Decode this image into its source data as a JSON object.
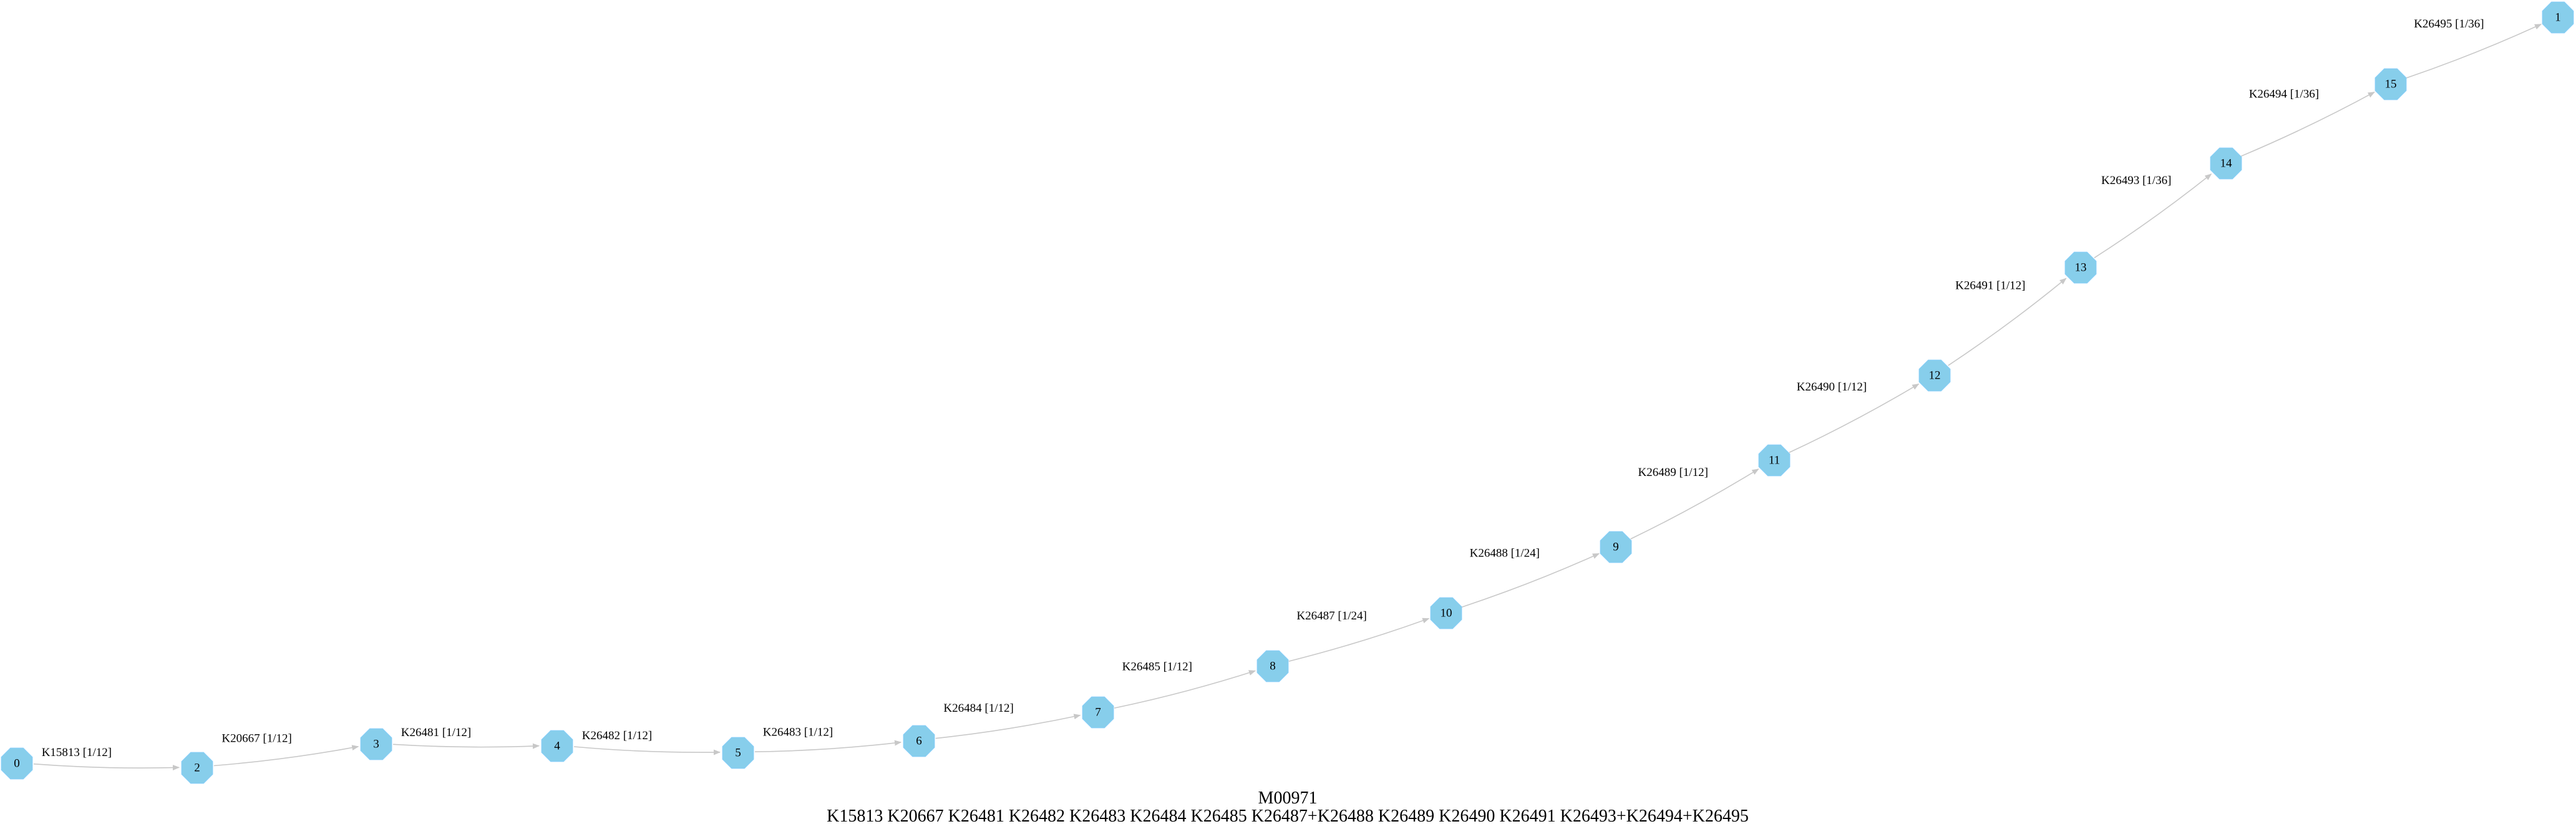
{
  "colors": {
    "node_fill": "#87ceeb",
    "edge": "#c8c8c8",
    "text": "#000000",
    "background": "#ffffff"
  },
  "caption": {
    "module_id": "M00971",
    "definition": "K15813 K20667 K26481 K26482 K26483 K26484 K26485 K26487+K26488 K26489 K26490 K26491 K26493+K26494+K26495"
  },
  "nodes": [
    "0",
    "2",
    "3",
    "4",
    "5",
    "6",
    "7",
    "8",
    "10",
    "9",
    "11",
    "12",
    "13",
    "14",
    "15",
    "1"
  ],
  "edges": [
    {
      "from": "0",
      "to": "2",
      "label": "K15813 [1/12]"
    },
    {
      "from": "2",
      "to": "3",
      "label": "K20667 [1/12]"
    },
    {
      "from": "3",
      "to": "4",
      "label": "K26481 [1/12]"
    },
    {
      "from": "4",
      "to": "5",
      "label": "K26482 [1/12]"
    },
    {
      "from": "5",
      "to": "6",
      "label": "K26483 [1/12]"
    },
    {
      "from": "6",
      "to": "7",
      "label": "K26484 [1/12]"
    },
    {
      "from": "7",
      "to": "8",
      "label": "K26485 [1/12]"
    },
    {
      "from": "8",
      "to": "10",
      "label": "K26487 [1/24]"
    },
    {
      "from": "10",
      "to": "9",
      "label": "K26488 [1/24]"
    },
    {
      "from": "9",
      "to": "11",
      "label": "K26489 [1/12]"
    },
    {
      "from": "11",
      "to": "12",
      "label": "K26490 [1/12]"
    },
    {
      "from": "12",
      "to": "13",
      "label": "K26491 [1/12]"
    },
    {
      "from": "13",
      "to": "14",
      "label": "K26493 [1/36]"
    },
    {
      "from": "14",
      "to": "15",
      "label": "K26494 [1/36]"
    },
    {
      "from": "15",
      "to": "1",
      "label": "K26495 [1/36]"
    }
  ]
}
